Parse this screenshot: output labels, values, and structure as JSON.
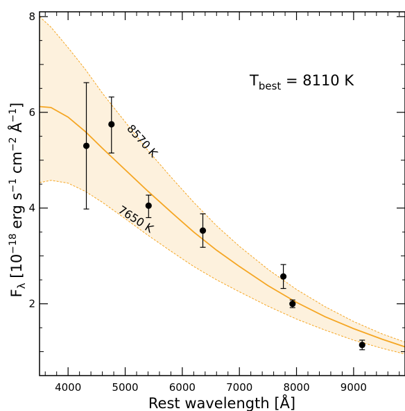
{
  "chart_data": {
    "type": "scatter",
    "xlabel": "Rest wavelength [Å]",
    "ylabel_main": "F",
    "ylabel_sub": "λ",
    "ylabel_units_parts": [
      " [10",
      "−18",
      " erg s",
      "−1",
      " cm",
      "−2",
      "  Å",
      "−1",
      "]"
    ],
    "xlim": [
      3500,
      9900
    ],
    "ylim": [
      0.5,
      8.1
    ],
    "xticks": [
      4000,
      5000,
      6000,
      7000,
      8000,
      9000
    ],
    "xtick_labels": [
      "4000",
      "5000",
      "6000",
      "7000",
      "8000",
      "9000"
    ],
    "yticks": [
      2,
      4,
      6,
      8
    ],
    "ytick_labels": [
      "2",
      "4",
      "6",
      "8"
    ],
    "annotation": {
      "prefix": "T",
      "subscript": "best",
      "text": " = 8110 K",
      "position": "top-right"
    },
    "series": [
      {
        "kind": "model-curve",
        "role": "best",
        "temperature_K": 8110,
        "color": "#f5a623",
        "style": "solid",
        "x": [
          3500,
          3700,
          4000,
          4300,
          4600,
          5000,
          5400,
          5800,
          6200,
          6600,
          7000,
          7500,
          8000,
          8500,
          9000,
          9500,
          9900
        ],
        "y": [
          6.12,
          6.1,
          5.9,
          5.6,
          5.25,
          4.8,
          4.35,
          3.92,
          3.5,
          3.12,
          2.78,
          2.38,
          2.03,
          1.73,
          1.48,
          1.26,
          1.1
        ]
      },
      {
        "kind": "model-curve",
        "role": "upper",
        "label": "8570 K",
        "temperature_K": 8570,
        "color": "#f5a623",
        "style": "dashed",
        "x": [
          3500,
          3700,
          4000,
          4300,
          4600,
          5000,
          5400,
          5800,
          6200,
          6600,
          7000,
          7500,
          8000,
          8500,
          9000,
          9500,
          9900
        ],
        "y": [
          8.0,
          7.78,
          7.35,
          6.9,
          6.4,
          5.8,
          5.2,
          4.65,
          4.12,
          3.63,
          3.2,
          2.72,
          2.3,
          1.94,
          1.63,
          1.37,
          1.2
        ]
      },
      {
        "kind": "model-curve",
        "role": "lower",
        "label": "7650 K",
        "temperature_K": 7650,
        "color": "#f5a623",
        "style": "dashed",
        "x": [
          3500,
          3700,
          4000,
          4300,
          4600,
          5000,
          5400,
          5800,
          6200,
          6600,
          7000,
          7500,
          8000,
          8500,
          9000,
          9500,
          9900
        ],
        "y": [
          4.53,
          4.58,
          4.52,
          4.35,
          4.12,
          3.78,
          3.43,
          3.1,
          2.78,
          2.5,
          2.25,
          1.95,
          1.68,
          1.45,
          1.24,
          1.07,
          0.95
        ]
      },
      {
        "kind": "data",
        "name": "",
        "color": "#000000",
        "x": [
          4320,
          4760,
          5410,
          6360,
          7770,
          7930,
          9150
        ],
        "y": [
          5.3,
          5.75,
          4.05,
          3.53,
          2.57,
          2.0,
          1.14
        ],
        "yerr_low": [
          1.32,
          0.6,
          0.25,
          0.35,
          0.25,
          0.08,
          0.1
        ],
        "yerr_high": [
          1.32,
          0.57,
          0.22,
          0.35,
          0.25,
          0.08,
          0.1
        ]
      }
    ],
    "curve_labels": [
      {
        "text": "8570 K",
        "x": 5250,
        "y": 5.35,
        "rotation_deg": 48
      },
      {
        "text": "7650 K",
        "x": 5150,
        "y": 3.7,
        "rotation_deg": 33
      }
    ],
    "fill_between": {
      "upper": "8570 K",
      "lower": "7650 K",
      "color": "#fdf1dd"
    },
    "grid": false,
    "legend": "none"
  }
}
